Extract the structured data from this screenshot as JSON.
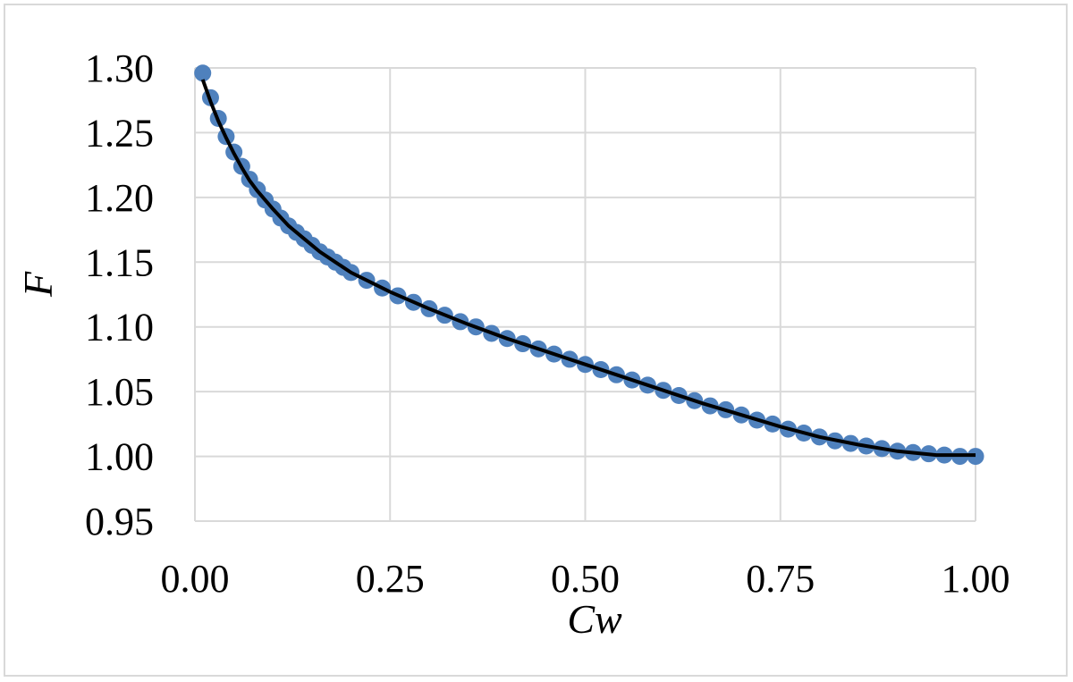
{
  "chart_data": {
    "type": "scatter",
    "xlabel": "Cw",
    "ylabel": "F",
    "xlim": [
      0,
      1
    ],
    "ylim": [
      0.95,
      1.3
    ],
    "x_ticks": [
      "0.00",
      "0.25",
      "0.50",
      "0.75",
      "1.00"
    ],
    "y_ticks": [
      "0.95",
      "1.00",
      "1.05",
      "1.10",
      "1.15",
      "1.20",
      "1.25",
      "1.30"
    ],
    "grid": true,
    "legend": "none",
    "series": [
      {
        "kind": "markers",
        "color": "#4f81bd",
        "points": [
          [
            0.01,
            1.296
          ],
          [
            0.02,
            1.277
          ],
          [
            0.03,
            1.261
          ],
          [
            0.04,
            1.247
          ],
          [
            0.05,
            1.235
          ],
          [
            0.06,
            1.224
          ],
          [
            0.07,
            1.214
          ],
          [
            0.08,
            1.206
          ],
          [
            0.09,
            1.198
          ],
          [
            0.1,
            1.191
          ],
          [
            0.11,
            1.184
          ],
          [
            0.12,
            1.178
          ],
          [
            0.13,
            1.173
          ],
          [
            0.14,
            1.168
          ],
          [
            0.15,
            1.163
          ],
          [
            0.16,
            1.158
          ],
          [
            0.17,
            1.154
          ],
          [
            0.18,
            1.15
          ],
          [
            0.19,
            1.146
          ],
          [
            0.2,
            1.142
          ],
          [
            0.22,
            1.136
          ],
          [
            0.24,
            1.13
          ],
          [
            0.26,
            1.124
          ],
          [
            0.28,
            1.119
          ],
          [
            0.3,
            1.114
          ],
          [
            0.32,
            1.109
          ],
          [
            0.34,
            1.104
          ],
          [
            0.36,
            1.1
          ],
          [
            0.38,
            1.095
          ],
          [
            0.4,
            1.091
          ],
          [
            0.42,
            1.087
          ],
          [
            0.44,
            1.083
          ],
          [
            0.46,
            1.079
          ],
          [
            0.48,
            1.075
          ],
          [
            0.5,
            1.071
          ],
          [
            0.52,
            1.067
          ],
          [
            0.54,
            1.063
          ],
          [
            0.56,
            1.059
          ],
          [
            0.58,
            1.055
          ],
          [
            0.6,
            1.051
          ],
          [
            0.62,
            1.047
          ],
          [
            0.64,
            1.043
          ],
          [
            0.66,
            1.039
          ],
          [
            0.68,
            1.036
          ],
          [
            0.7,
            1.032
          ],
          [
            0.72,
            1.028
          ],
          [
            0.74,
            1.025
          ],
          [
            0.76,
            1.021
          ],
          [
            0.78,
            1.018
          ],
          [
            0.8,
            1.015
          ],
          [
            0.82,
            1.012
          ],
          [
            0.84,
            1.01
          ],
          [
            0.86,
            1.008
          ],
          [
            0.88,
            1.006
          ],
          [
            0.9,
            1.004
          ],
          [
            0.92,
            1.003
          ],
          [
            0.94,
            1.002
          ],
          [
            0.96,
            1.001
          ],
          [
            0.98,
            1.0
          ],
          [
            1.0,
            1.0
          ]
        ]
      },
      {
        "kind": "line",
        "color": "#000000",
        "points": [
          [
            0.01,
            1.291
          ],
          [
            0.02,
            1.274
          ],
          [
            0.03,
            1.259
          ],
          [
            0.04,
            1.246
          ],
          [
            0.05,
            1.234
          ],
          [
            0.06,
            1.223
          ],
          [
            0.07,
            1.213
          ],
          [
            0.08,
            1.205
          ],
          [
            0.1,
            1.191
          ],
          [
            0.12,
            1.178
          ],
          [
            0.14,
            1.168
          ],
          [
            0.16,
            1.158
          ],
          [
            0.18,
            1.15
          ],
          [
            0.2,
            1.142
          ],
          [
            0.25,
            1.127
          ],
          [
            0.3,
            1.114
          ],
          [
            0.35,
            1.102
          ],
          [
            0.4,
            1.091
          ],
          [
            0.45,
            1.081
          ],
          [
            0.5,
            1.071
          ],
          [
            0.55,
            1.061
          ],
          [
            0.6,
            1.051
          ],
          [
            0.65,
            1.041
          ],
          [
            0.7,
            1.032
          ],
          [
            0.75,
            1.023
          ],
          [
            0.8,
            1.015
          ],
          [
            0.85,
            1.009
          ],
          [
            0.9,
            1.004
          ],
          [
            0.95,
            1.001
          ],
          [
            1.0,
            1.001
          ]
        ]
      }
    ]
  }
}
